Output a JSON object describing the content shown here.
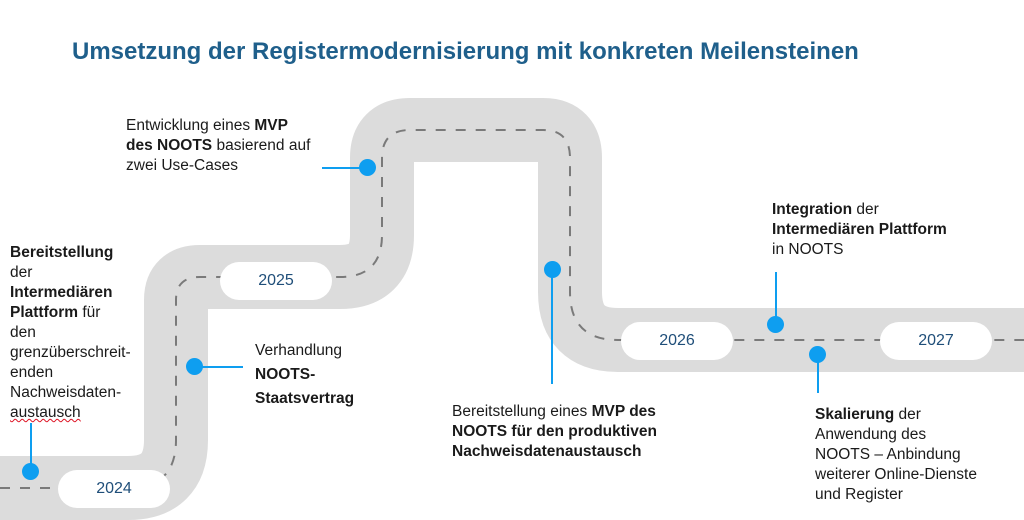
{
  "title": "Umsetzung der Registermodernisierung mit konkreten Meilensteinen",
  "colors": {
    "title": "#1f5f8b",
    "road": "#dcdcdc",
    "marker": "#0e9ef0",
    "year_text": "#1f4e79"
  },
  "years": {
    "y2024": "2024",
    "y2025": "2025",
    "y2026": "2026",
    "y2027": "2027"
  },
  "milestones": {
    "bereitstellung": {
      "bold1": "Bereitstellung",
      "t2": "der",
      "bold3": "Intermediären",
      "bold4": "Plattform",
      "t4": " für",
      "t5": "den",
      "t6": "grenzüberschreit-",
      "t7": "enden",
      "t8": "Nachweisdaten-",
      "t9": "austausch"
    },
    "verhandlung": {
      "t1": "Verhandlung",
      "bold2": "NOOTS-",
      "bold3": "Staatsvertrag"
    },
    "mvp": {
      "t1": "Entwicklung eines ",
      "bold1": "MVP",
      "bold2": "des NOOTS",
      "t2": " basierend auf",
      "t3": "zwei Use-Cases"
    },
    "produktiv": {
      "t1": "Bereitstellung eines ",
      "bold1": "MVP des",
      "bold2": "NOOTS für den produktiven",
      "bold3": "Nachweisdatenaustausch"
    },
    "integration": {
      "bold1": "Integration",
      "t1": " der",
      "bold2": "Intermediären Plattform",
      "t3": "in NOOTS"
    },
    "skalierung": {
      "bold1": "Skalierung",
      "t1": " der",
      "t2": "Anwendung des",
      "t3": "NOOTS – Anbindung",
      "t4": "weiterer Online-Dienste",
      "t5": "und Register"
    }
  }
}
